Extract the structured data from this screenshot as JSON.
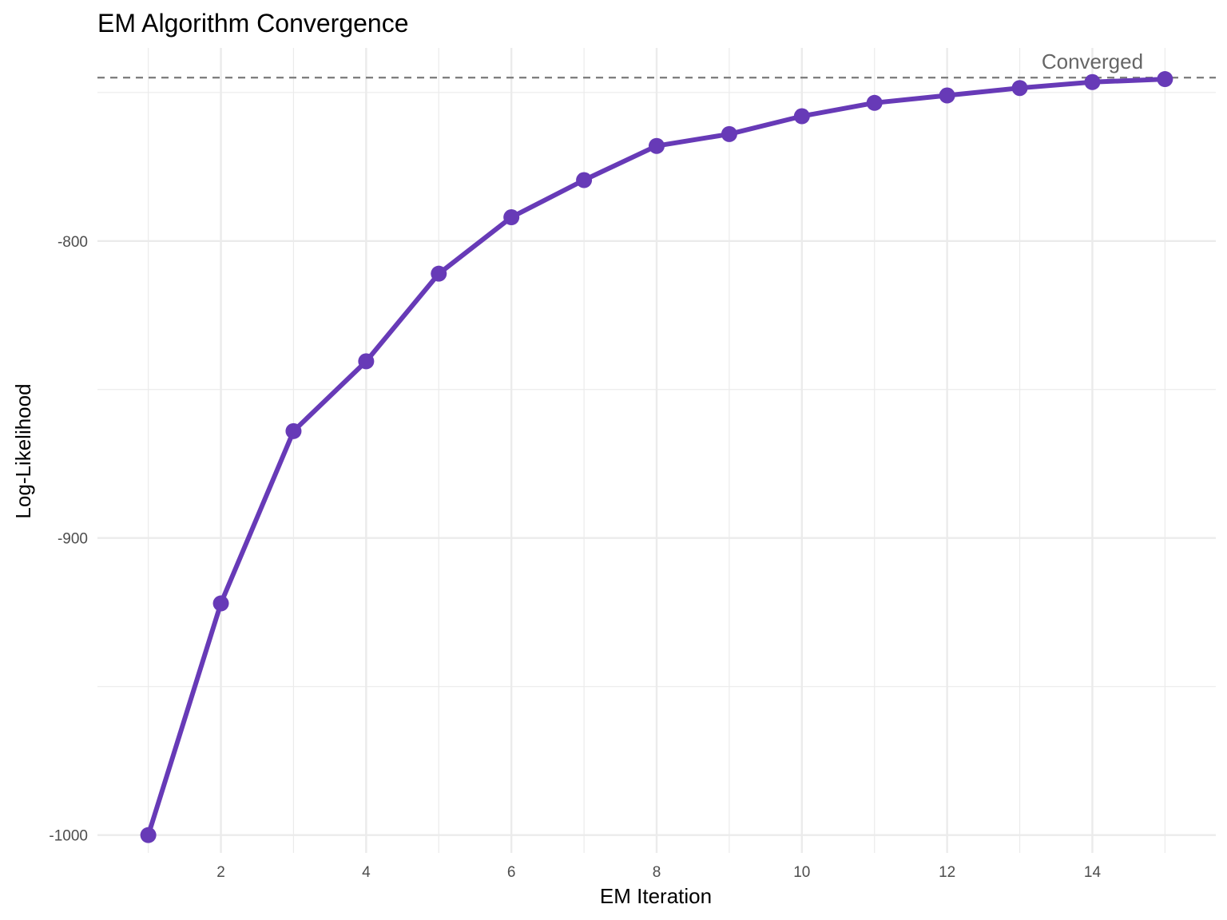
{
  "chart_data": {
    "type": "line",
    "title": "EM Algorithm Convergence",
    "xlabel": "EM Iteration",
    "ylabel": "Log-Likelihood",
    "x": [
      1,
      2,
      3,
      4,
      5,
      6,
      7,
      8,
      9,
      10,
      11,
      12,
      13,
      14,
      15
    ],
    "series": [
      {
        "values": [
          -1000,
          -922,
          -864,
          -840.5,
          -811,
          -792,
          -779.5,
          -768,
          -764,
          -758,
          -753.5,
          -751,
          -748.5,
          -746.5,
          -745.5
        ]
      }
    ],
    "xlim": [
      0.3,
      15.7
    ],
    "ylim": [
      -1006,
      -735
    ],
    "x_ticks": [
      2,
      4,
      6,
      8,
      10,
      12,
      14
    ],
    "x_minor_ticks": [
      1,
      3,
      5,
      7,
      9,
      11,
      13,
      15
    ],
    "y_ticks": [
      -1000,
      -900,
      -800
    ],
    "y_tick_labels": [
      "-1000",
      "-900",
      "-800"
    ],
    "y_minor_ticks": [
      -950,
      -850,
      -750
    ],
    "reference_line": {
      "y": -745,
      "style": "dashed",
      "label": "Converged",
      "label_x": 14
    },
    "grid": true,
    "legend": "none",
    "colors": {
      "line": "#673AB7",
      "reference": "#808080",
      "grid": "#ebebeb",
      "annotation": "#666666"
    }
  }
}
